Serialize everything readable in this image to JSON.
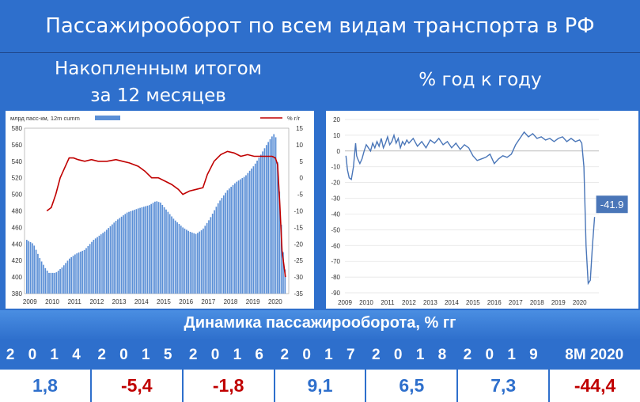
{
  "header": {
    "title": "Пассажирооборот по всем видам транспорта в РФ",
    "left_subtitle_line1": "Накопленным итогом",
    "left_subtitle_line2": "за 12 месяцев",
    "right_subtitle": "% год к году"
  },
  "table": {
    "title": "Динамика пассажирооборота, % гг",
    "years": [
      "2 0 1 4",
      "2 0 1 5",
      "2 0 1 6",
      "2 0 1 7",
      "2 0 1 8",
      "2 0 1 9",
      "8М 2020"
    ],
    "values": [
      "1,8",
      "-5,4",
      "-1,8",
      "9,1",
      "6,5",
      "7,3",
      "-44,4"
    ],
    "value_colors": [
      "#2e6fcc",
      "#c00000",
      "#c00000",
      "#2e6fcc",
      "#2e6fcc",
      "#2e6fcc",
      "#c00000"
    ]
  },
  "chart_data": [
    {
      "type": "bar",
      "legend": [
        {
          "name": "млрд пасс-км, 12m cumm",
          "color": "#5b8fd6"
        },
        {
          "name": "% г/г",
          "color": "#c00000"
        }
      ],
      "x_ticks": [
        "2009",
        "2010",
        "2011",
        "2012",
        "2013",
        "2014",
        "2015",
        "2016",
        "2017",
        "2018",
        "2019",
        "2020"
      ],
      "ylim": [
        380,
        580
      ],
      "y_ticks": [
        380,
        400,
        420,
        440,
        460,
        480,
        500,
        520,
        540,
        560,
        580
      ],
      "y2lim": [
        -35,
        15
      ],
      "y2_ticks": [
        15,
        10,
        5,
        0,
        -5,
        -10,
        -15,
        -20,
        -25,
        -30,
        -35
      ],
      "series": [
        {
          "name": "млрд пасс-км, 12m cumm",
          "axis": "left",
          "points": [
            [
              2009.0,
              445
            ],
            [
              2009.3,
              440
            ],
            [
              2009.6,
              422
            ],
            [
              2009.85,
              410
            ],
            [
              2010.0,
              405
            ],
            [
              2010.3,
              405
            ],
            [
              2010.6,
              412
            ],
            [
              2010.9,
              422
            ],
            [
              2011.2,
              428
            ],
            [
              2011.6,
              433
            ],
            [
              2012.0,
              445
            ],
            [
              2012.5,
              455
            ],
            [
              2013.0,
              468
            ],
            [
              2013.5,
              478
            ],
            [
              2014.0,
              483
            ],
            [
              2014.5,
              487
            ],
            [
              2014.8,
              492
            ],
            [
              2015.0,
              490
            ],
            [
              2015.3,
              480
            ],
            [
              2015.6,
              470
            ],
            [
              2016.0,
              460
            ],
            [
              2016.3,
              455
            ],
            [
              2016.6,
              452
            ],
            [
              2016.9,
              458
            ],
            [
              2017.2,
              470
            ],
            [
              2017.6,
              490
            ],
            [
              2018.0,
              505
            ],
            [
              2018.4,
              515
            ],
            [
              2018.8,
              522
            ],
            [
              2019.2,
              535
            ],
            [
              2019.5,
              548
            ],
            [
              2019.8,
              562
            ],
            [
              2020.0,
              570
            ],
            [
              2020.15,
              575
            ],
            [
              2020.22,
              550
            ],
            [
              2020.3,
              520
            ],
            [
              2020.4,
              470
            ],
            [
              2020.5,
              430
            ],
            [
              2020.6,
              405
            ]
          ]
        },
        {
          "name": "% г/г",
          "axis": "right",
          "points": [
            [
              2009.9,
              -10
            ],
            [
              2010.1,
              -9
            ],
            [
              2010.3,
              -5
            ],
            [
              2010.5,
              0
            ],
            [
              2010.7,
              3
            ],
            [
              2010.9,
              6
            ],
            [
              2011.1,
              6
            ],
            [
              2011.3,
              5.5
            ],
            [
              2011.6,
              5
            ],
            [
              2011.9,
              5.5
            ],
            [
              2012.2,
              5
            ],
            [
              2012.6,
              5
            ],
            [
              2013.0,
              5.5
            ],
            [
              2013.3,
              5
            ],
            [
              2013.6,
              4.5
            ],
            [
              2014.0,
              3.5
            ],
            [
              2014.3,
              2
            ],
            [
              2014.6,
              0
            ],
            [
              2014.9,
              0
            ],
            [
              2015.2,
              -1
            ],
            [
              2015.5,
              -2
            ],
            [
              2015.8,
              -3.5
            ],
            [
              2016.0,
              -5
            ],
            [
              2016.3,
              -4
            ],
            [
              2016.6,
              -3.5
            ],
            [
              2016.9,
              -3
            ],
            [
              2017.1,
              1
            ],
            [
              2017.4,
              5
            ],
            [
              2017.7,
              7
            ],
            [
              2018.0,
              8
            ],
            [
              2018.3,
              7.5
            ],
            [
              2018.6,
              6.5
            ],
            [
              2018.9,
              7
            ],
            [
              2019.2,
              6.5
            ],
            [
              2019.5,
              6.5
            ],
            [
              2019.8,
              6.5
            ],
            [
              2020.0,
              6.5
            ],
            [
              2020.15,
              6
            ],
            [
              2020.25,
              4
            ],
            [
              2020.35,
              -8
            ],
            [
              2020.45,
              -22
            ],
            [
              2020.6,
              -30
            ]
          ]
        }
      ]
    },
    {
      "type": "line",
      "x_ticks": [
        "2009",
        "2010",
        "2011",
        "2012",
        "2013",
        "2014",
        "2015",
        "2016",
        "2017",
        "2018",
        "2019",
        "2020"
      ],
      "ylim": [
        -90,
        20
      ],
      "y_ticks": [
        20,
        10,
        0,
        -10,
        -20,
        -30,
        -40,
        -50,
        -60,
        -70,
        -80,
        -90
      ],
      "annotations": [
        {
          "text": "-41.9"
        }
      ],
      "series": [
        {
          "name": "",
          "color": "#4a76b8",
          "points": [
            [
              2009.05,
              -3
            ],
            [
              2009.12,
              -12
            ],
            [
              2009.2,
              -17
            ],
            [
              2009.3,
              -18
            ],
            [
              2009.4,
              -10
            ],
            [
              2009.5,
              5
            ],
            [
              2009.55,
              -3
            ],
            [
              2009.6,
              -5
            ],
            [
              2009.7,
              -8
            ],
            [
              2009.8,
              -5
            ],
            [
              2009.9,
              0
            ],
            [
              2010.0,
              4
            ],
            [
              2010.1,
              2
            ],
            [
              2010.2,
              0
            ],
            [
              2010.3,
              5
            ],
            [
              2010.4,
              2
            ],
            [
              2010.5,
              6
            ],
            [
              2010.6,
              3
            ],
            [
              2010.7,
              8
            ],
            [
              2010.8,
              2
            ],
            [
              2010.9,
              5
            ],
            [
              2011.0,
              9
            ],
            [
              2011.1,
              4
            ],
            [
              2011.2,
              6
            ],
            [
              2011.3,
              10
            ],
            [
              2011.4,
              5
            ],
            [
              2011.5,
              8
            ],
            [
              2011.6,
              2
            ],
            [
              2011.7,
              6
            ],
            [
              2011.8,
              4
            ],
            [
              2011.9,
              7
            ],
            [
              2012.0,
              5
            ],
            [
              2012.2,
              8
            ],
            [
              2012.4,
              3
            ],
            [
              2012.6,
              6
            ],
            [
              2012.8,
              2
            ],
            [
              2013.0,
              7
            ],
            [
              2013.2,
              5
            ],
            [
              2013.4,
              8
            ],
            [
              2013.6,
              4
            ],
            [
              2013.8,
              6
            ],
            [
              2014.0,
              2
            ],
            [
              2014.2,
              5
            ],
            [
              2014.4,
              1
            ],
            [
              2014.6,
              4
            ],
            [
              2014.8,
              2
            ],
            [
              2015.0,
              -3
            ],
            [
              2015.2,
              -6
            ],
            [
              2015.4,
              -5
            ],
            [
              2015.6,
              -4
            ],
            [
              2015.8,
              -2
            ],
            [
              2016.0,
              -8
            ],
            [
              2016.2,
              -5
            ],
            [
              2016.4,
              -3
            ],
            [
              2016.6,
              -4
            ],
            [
              2016.8,
              -2
            ],
            [
              2017.0,
              4
            ],
            [
              2017.2,
              8
            ],
            [
              2017.4,
              12
            ],
            [
              2017.6,
              9
            ],
            [
              2017.8,
              11
            ],
            [
              2018.0,
              8
            ],
            [
              2018.2,
              9
            ],
            [
              2018.4,
              7
            ],
            [
              2018.6,
              8
            ],
            [
              2018.8,
              6
            ],
            [
              2019.0,
              8
            ],
            [
              2019.2,
              9
            ],
            [
              2019.4,
              6
            ],
            [
              2019.6,
              8
            ],
            [
              2019.8,
              6
            ],
            [
              2020.0,
              7
            ],
            [
              2020.1,
              5
            ],
            [
              2020.2,
              -10
            ],
            [
              2020.3,
              -60
            ],
            [
              2020.4,
              -84
            ],
            [
              2020.5,
              -82
            ],
            [
              2020.6,
              -60
            ],
            [
              2020.7,
              -41.9
            ]
          ]
        }
      ]
    }
  ]
}
